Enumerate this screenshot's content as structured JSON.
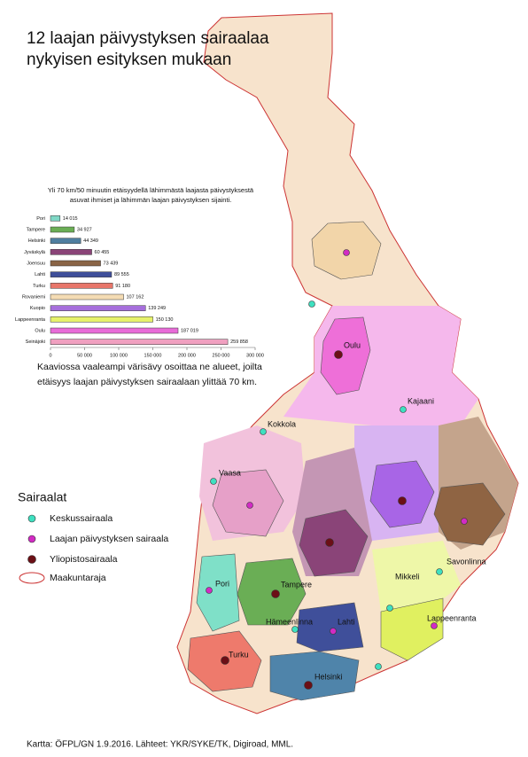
{
  "title": [
    "12 laajan päivystyksen sairaalaa",
    "nykyisen esityksen mukaan"
  ],
  "chart_data": {
    "type": "bar",
    "title": [
      "Yli 70 km/50 minuutin etäisyydellä lähimmästä laajasta päivystyksestä",
      "asuvat ihmiset ja lähimmän laajan päivystyksen sijainti."
    ],
    "categories": [
      "Pori",
      "Tampere",
      "Helsinki",
      "Jyväskylä",
      "Joensuu",
      "Lahti",
      "Turku",
      "Rovaniemi",
      "Kuopio",
      "Lappeenranta",
      "Oulu",
      "Seinäjoki"
    ],
    "values": [
      14015,
      34927,
      44349,
      60455,
      73439,
      89555,
      91180,
      107162,
      139249,
      150130,
      187019,
      259858
    ],
    "value_labels": [
      "14 015",
      "34 927",
      "44 349",
      "60 455",
      "73 439",
      "89 555",
      "91 180",
      "107 162",
      "139 249",
      "150 130",
      "187 019",
      "259 858"
    ],
    "colors": [
      "#7fd8c6",
      "#6aae55",
      "#4f7fa0",
      "#8a4478",
      "#8a6446",
      "#3f4f9a",
      "#e8766a",
      "#f4dcb4",
      "#a66fdc",
      "#e6f26a",
      "#e86cd8",
      "#f0a0c0"
    ],
    "xlim": [
      0,
      300000
    ],
    "xticks": [
      0,
      {
        "value": 50000,
        "label": "50 000"
      },
      {
        "value": 100000,
        "label": "100 000"
      },
      {
        "value": 150000,
        "label": "150 000"
      },
      {
        "value": 200000,
        "label": "200 000"
      },
      {
        "value": 250000,
        "label": "250 000"
      },
      {
        "value": 300000,
        "label": "300 000"
      }
    ]
  },
  "note": [
    "Kaaviossa vaaleampi värisävy osoittaa ne alueet, joilta",
    "etäisyys laajan päivystyksen sairaalaan ylittää 70 km."
  ],
  "legend": {
    "title": "Sairaalat",
    "items": [
      "Keskussairaala",
      "Laajan päivystyksen sairaala",
      "Yliopistosairaala",
      "Maakuntaraja"
    ]
  },
  "cities": [
    "Oulu",
    "Kajaani",
    "Kokkola",
    "Vaasa",
    "Pori",
    "Tampere",
    "Hämeenlinna",
    "Lahti",
    "Turku",
    "Helsinki",
    "Mikkeli",
    "Savonlinna",
    "Lappeenranta"
  ],
  "credit": "Kartta: ÖFPL/GN 1.9.2016. Lähteet: YKR/SYKE/TK, Digiroad, MML."
}
